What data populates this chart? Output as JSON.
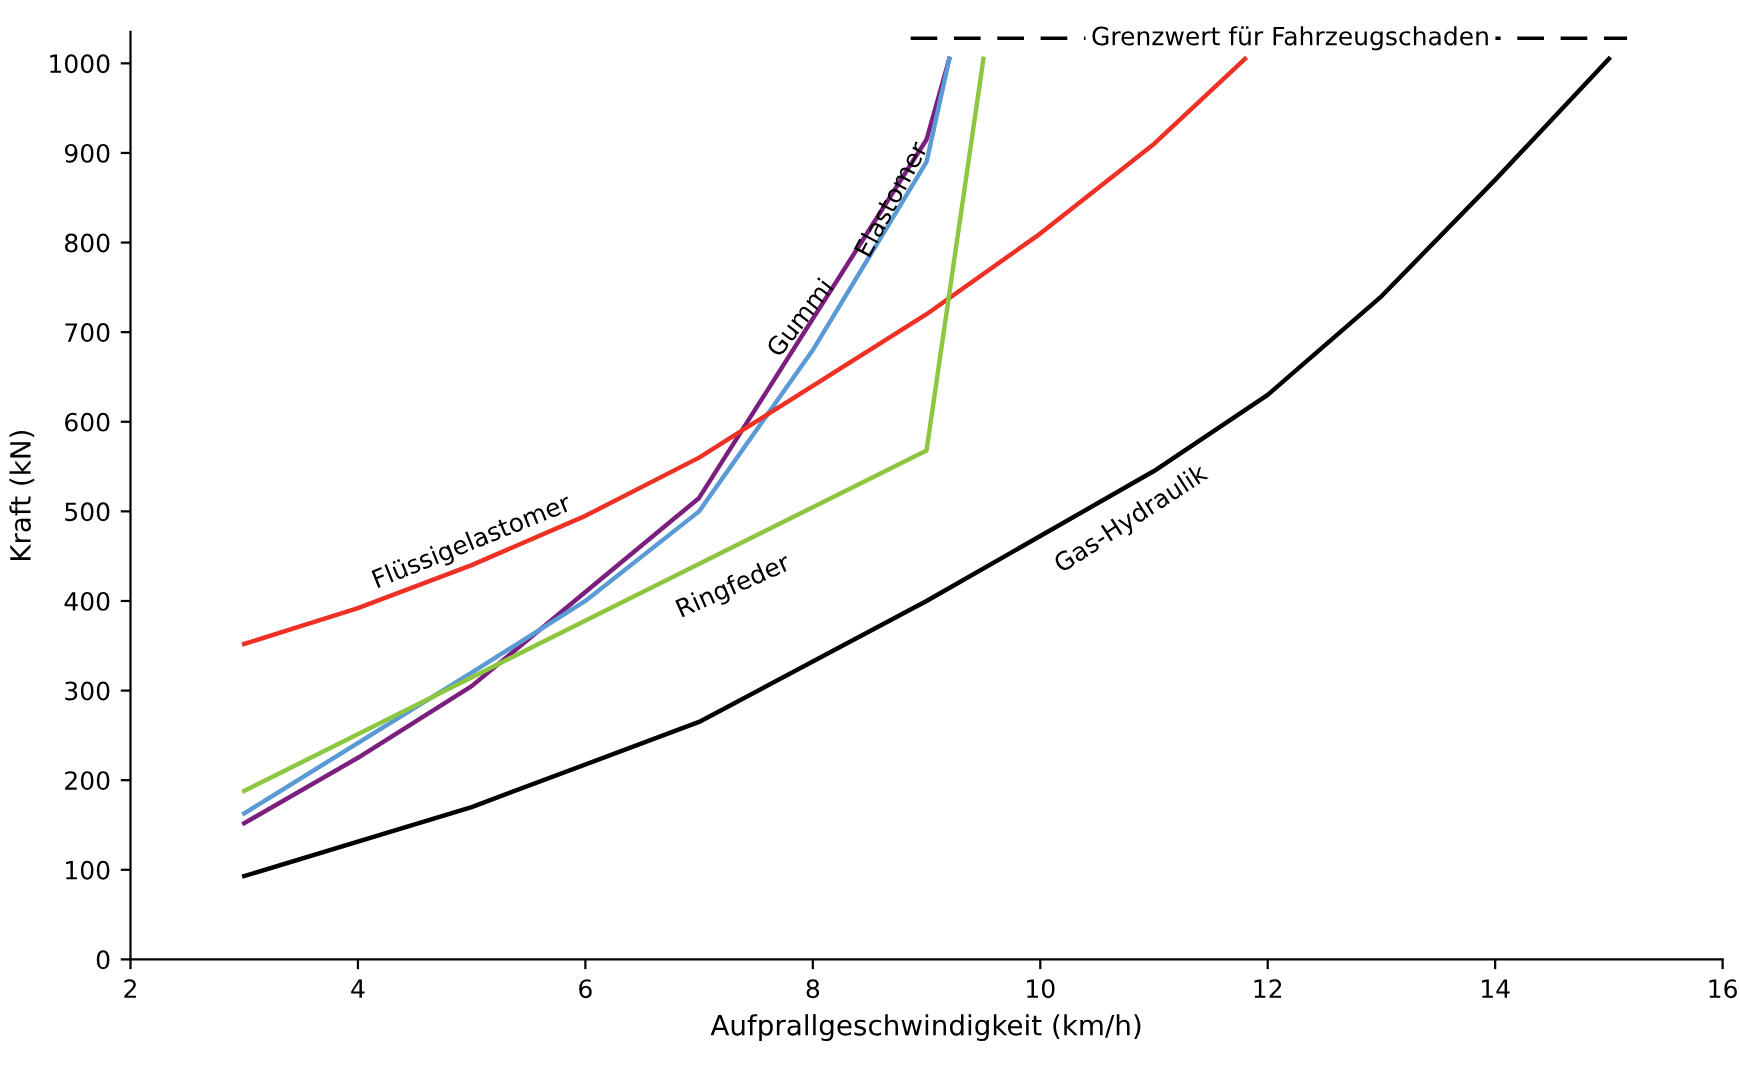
{
  "chart_data": {
    "type": "line",
    "xlabel": "Aufprallgeschwindigkeit (km/h)",
    "ylabel": "Kraft (kN)",
    "xlim": [
      2,
      16
    ],
    "xticks": [
      2,
      4,
      6,
      8,
      10,
      12,
      14,
      16
    ],
    "ylim": [
      0,
      1035
    ],
    "yticks": [
      0,
      100,
      200,
      300,
      400,
      500,
      600,
      700,
      800,
      900,
      1000
    ],
    "grid": false,
    "legend": false,
    "marker": "none",
    "line_style": "solid",
    "ref_lines": [
      {
        "axis": "y",
        "value": 1028,
        "label": "Grenzwert für Fahrzeugschaden",
        "color": "#000000",
        "line_style": "dashed"
      }
    ],
    "series": [
      {
        "name": "Gummi",
        "color": "#7b1f7e",
        "x": [
          3,
          4,
          5,
          6,
          7,
          9,
          9.2
        ],
        "values": [
          152,
          225,
          305,
          410,
          515,
          915,
          1005
        ]
      },
      {
        "name": "Elastomer",
        "color": "#5b9bd5",
        "x": [
          3,
          5,
          6,
          7,
          8,
          9,
          9.2
        ],
        "values": [
          163,
          320,
          400,
          500,
          680,
          890,
          1005
        ]
      },
      {
        "name": "Flüssigelastomer",
        "color": "#ee3124",
        "x": [
          3,
          4,
          5,
          6,
          7,
          8,
          9,
          10,
          11,
          11.8
        ],
        "values": [
          352,
          392,
          440,
          495,
          560,
          640,
          720,
          810,
          910,
          1005
        ]
      },
      {
        "name": "Ringfeder",
        "color": "#8dc63f",
        "x": [
          3,
          9,
          9.5
        ],
        "values": [
          188,
          568,
          1005
        ]
      },
      {
        "name": "Gas-Hydraulik",
        "color": "#000000",
        "x": [
          3,
          5,
          7,
          9,
          11,
          12,
          13,
          14,
          15
        ],
        "values": [
          93,
          170,
          265,
          400,
          545,
          630,
          740,
          870,
          1005
        ]
      }
    ]
  }
}
